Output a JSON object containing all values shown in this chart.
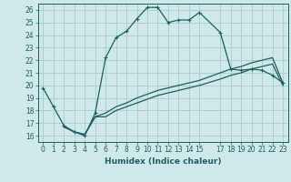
{
  "xlabel": "Humidex (Indice chaleur)",
  "bg_color": "#cfe8e8",
  "grid_color": "#aacccc",
  "line_color": "#1a6060",
  "xlim": [
    -0.5,
    23.5
  ],
  "ylim": [
    15.5,
    26.5
  ],
  "xticks": [
    0,
    1,
    2,
    3,
    4,
    5,
    6,
    7,
    8,
    9,
    10,
    11,
    12,
    13,
    14,
    15,
    17,
    18,
    19,
    20,
    21,
    22,
    23
  ],
  "yticks": [
    16,
    17,
    18,
    19,
    20,
    21,
    22,
    23,
    24,
    25,
    26
  ],
  "line1_x": [
    0,
    1,
    2,
    3,
    4,
    5,
    6,
    7,
    8,
    9,
    10,
    11,
    12,
    13,
    14,
    15,
    17,
    18,
    19,
    20,
    21,
    22,
    23
  ],
  "line1_y": [
    19.8,
    18.3,
    16.8,
    16.3,
    16.0,
    17.8,
    22.2,
    23.8,
    24.3,
    25.3,
    26.2,
    26.2,
    25.0,
    25.2,
    25.2,
    25.8,
    24.2,
    21.3,
    21.2,
    21.3,
    21.2,
    20.8,
    20.2
  ],
  "line2_x": [
    2,
    3,
    4,
    5,
    6,
    7,
    8,
    9,
    10,
    11,
    12,
    13,
    14,
    15,
    17,
    18,
    19,
    20,
    21,
    22,
    23
  ],
  "line2_y": [
    16.7,
    16.3,
    16.1,
    17.5,
    17.5,
    18.0,
    18.3,
    18.6,
    18.9,
    19.2,
    19.4,
    19.6,
    19.8,
    20.0,
    20.5,
    20.8,
    21.0,
    21.3,
    21.5,
    21.7,
    20.0
  ],
  "line3_x": [
    2,
    3,
    4,
    5,
    6,
    7,
    8,
    9,
    10,
    11,
    12,
    13,
    14,
    15,
    17,
    18,
    19,
    20,
    21,
    22,
    23
  ],
  "line3_y": [
    16.7,
    16.3,
    16.1,
    17.5,
    17.8,
    18.3,
    18.6,
    19.0,
    19.3,
    19.6,
    19.8,
    20.0,
    20.2,
    20.4,
    21.0,
    21.3,
    21.5,
    21.8,
    22.0,
    22.2,
    20.2
  ],
  "tick_fontsize": 5.5,
  "xlabel_fontsize": 6.5
}
